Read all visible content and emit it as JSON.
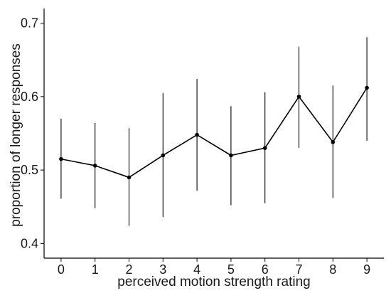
{
  "chart_data": {
    "type": "line",
    "xlabel": "perceived motion strength rating",
    "ylabel": "proportion of longer responses",
    "x": [
      0,
      1,
      2,
      3,
      4,
      5,
      6,
      7,
      8,
      9
    ],
    "x_tick_labels": [
      "0",
      "1",
      "2",
      "3",
      "4",
      "5",
      "6",
      "7",
      "8",
      "9"
    ],
    "y_ticks": [
      0.4,
      0.5,
      0.6,
      0.7
    ],
    "y_tick_labels": [
      "0.4",
      "0.5",
      "0.6",
      "0.7"
    ],
    "ylim": [
      0.38,
      0.72
    ],
    "xlim": [
      -0.5,
      9.5
    ],
    "grid": false,
    "series": [
      {
        "values": [
          0.515,
          0.506,
          0.49,
          0.52,
          0.548,
          0.52,
          0.53,
          0.6,
          0.538,
          0.612
        ],
        "error_low": [
          0.461,
          0.448,
          0.424,
          0.436,
          0.472,
          0.452,
          0.455,
          0.53,
          0.462,
          0.54
        ],
        "error_high": [
          0.57,
          0.564,
          0.557,
          0.605,
          0.624,
          0.587,
          0.606,
          0.668,
          0.615,
          0.681
        ]
      }
    ]
  }
}
